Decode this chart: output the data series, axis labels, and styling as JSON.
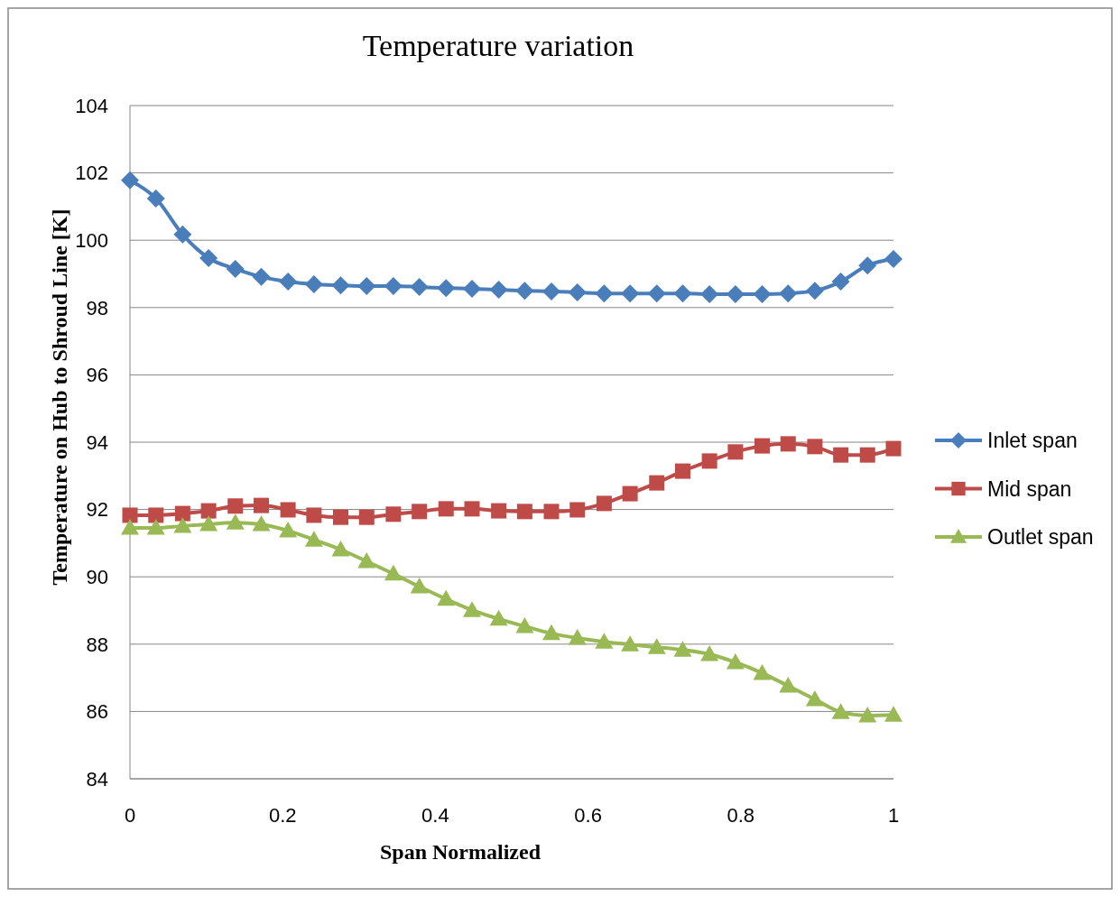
{
  "chart_data": {
    "type": "line",
    "title": "Temperature  variation",
    "xlabel": "Span Normalized",
    "ylabel": "Temperature  on Hub to Shroud Line [K]",
    "x": [
      0,
      0.034,
      0.069,
      0.103,
      0.138,
      0.172,
      0.207,
      0.241,
      0.276,
      0.31,
      0.345,
      0.379,
      0.414,
      0.448,
      0.483,
      0.517,
      0.552,
      0.586,
      0.621,
      0.655,
      0.69,
      0.724,
      0.759,
      0.793,
      0.828,
      0.862,
      0.897,
      0.931,
      0.966,
      1
    ],
    "series": [
      {
        "name": "Inlet span",
        "color": "#4a7ebb",
        "marker": "diamond",
        "values": [
          101.78,
          101.24,
          100.17,
          99.47,
          99.15,
          98.91,
          98.77,
          98.69,
          98.66,
          98.64,
          98.64,
          98.61,
          98.58,
          98.56,
          98.53,
          98.5,
          98.48,
          98.45,
          98.42,
          98.42,
          98.42,
          98.42,
          98.4,
          98.4,
          98.4,
          98.42,
          98.5,
          98.77,
          99.25,
          99.44
        ]
      },
      {
        "name": "Mid span",
        "color": "#be4b48",
        "marker": "square",
        "values": [
          91.83,
          91.83,
          91.88,
          91.96,
          92.1,
          92.12,
          91.99,
          91.83,
          91.77,
          91.77,
          91.86,
          91.94,
          92.02,
          92.02,
          91.96,
          91.94,
          91.94,
          91.99,
          92.18,
          92.47,
          92.79,
          93.14,
          93.44,
          93.71,
          93.89,
          93.95,
          93.87,
          93.62,
          93.62,
          93.81
        ]
      },
      {
        "name": "Outlet span",
        "color": "#98b954",
        "marker": "triangle",
        "values": [
          91.45,
          91.45,
          91.51,
          91.56,
          91.61,
          91.56,
          91.37,
          91.1,
          90.81,
          90.46,
          90.09,
          89.71,
          89.34,
          89.01,
          88.75,
          88.53,
          88.32,
          88.18,
          88.07,
          87.99,
          87.91,
          87.83,
          87.7,
          87.46,
          87.14,
          86.76,
          86.36,
          85.98,
          85.88,
          85.9
        ]
      }
    ],
    "xlim": [
      0,
      1
    ],
    "xticks": [
      0,
      0.2,
      0.4,
      0.6,
      0.8,
      1
    ],
    "ylim": [
      84,
      104
    ],
    "yticks": [
      84,
      86,
      88,
      90,
      92,
      94,
      96,
      98,
      100,
      102,
      104
    ],
    "grid": "y",
    "legend": "right",
    "line_style": "solid"
  }
}
